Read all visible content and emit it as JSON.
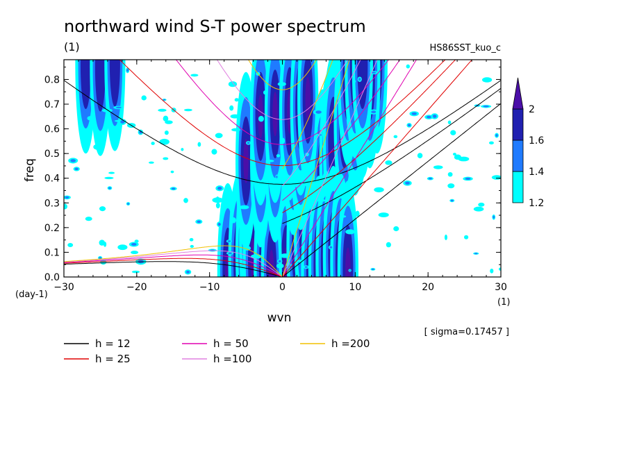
{
  "chart_data": {
    "type": "heatmap",
    "title": "northward wind S-T power spectrum",
    "subtitle_left": "(1)",
    "subtitle_right": "HS86SST_kuo_c",
    "xlabel": "wvn",
    "ylabel": "freq",
    "x_unit": "(1)",
    "y_unit": "(day-1)",
    "xlim": [
      -30,
      30
    ],
    "ylim": [
      0,
      0.88
    ],
    "x_ticks": [
      -30,
      -20,
      -10,
      0,
      10,
      20,
      30
    ],
    "x_tick_labels": [
      "-30",
      "-20",
      "-10",
      "0",
      "10",
      "20",
      "30"
    ],
    "y_ticks": [
      0,
      0.1,
      0.2,
      0.3,
      0.4,
      0.5,
      0.6,
      0.7,
      0.8
    ],
    "y_tick_labels": [
      "0.0",
      "0.1",
      "0.2",
      "0.3",
      "0.4",
      "0.5",
      "0.6",
      "0.7",
      "0.8"
    ],
    "sigma_label": "[ sigma=0.17457 ]",
    "colorbar": {
      "levels": [
        1.2,
        1.4,
        1.6,
        2
      ],
      "labels": [
        "1.2",
        "1.4",
        "1.6",
        "2"
      ],
      "colors": [
        "#00ffff",
        "#1f7bff",
        "#2020b0",
        "#4b0fa8"
      ]
    },
    "dispersion_curves": [
      {
        "label": "h = 12",
        "h": 12,
        "color": "#000000"
      },
      {
        "label": "h = 25",
        "h": 25,
        "color": "#e00000"
      },
      {
        "label": "h = 50",
        "h": 50,
        "color": "#e000b0"
      },
      {
        "label": "h =100",
        "h": 100,
        "color": "#e080e0"
      },
      {
        "label": "h =200",
        "h": 200,
        "color": "#f0c000"
      }
    ],
    "contour_features": [
      {
        "name": "kelvin-band",
        "points": [
          [
            0.5,
            0.03
          ],
          [
            2,
            0.12
          ],
          [
            3,
            0.2
          ],
          [
            4.5,
            0.3
          ],
          [
            5.5,
            0.4
          ],
          [
            6.5,
            0.48
          ],
          [
            7.5,
            0.56
          ],
          [
            9,
            0.64
          ],
          [
            10.5,
            0.72
          ],
          [
            12,
            0.8
          ],
          [
            13,
            0.86
          ]
        ],
        "level": 2
      },
      {
        "name": "mrg-band",
        "points": [
          [
            -7.5,
            0.02
          ],
          [
            -6,
            0.06
          ],
          [
            -5,
            0.1
          ],
          [
            -4.5,
            0.15
          ],
          [
            -3.5,
            0.22
          ],
          [
            -3,
            0.27
          ],
          [
            -4,
            0.07
          ],
          [
            -2.5,
            0.04
          ],
          [
            -1.5,
            0.02
          ]
        ],
        "level": 2
      },
      {
        "name": "ig-band-1",
        "points": [
          [
            -5,
            0.47
          ],
          [
            -3,
            0.48
          ],
          [
            -1,
            0.5
          ],
          [
            1.5,
            0.53
          ],
          [
            2.5,
            0.55
          ]
        ],
        "level": 2
      },
      {
        "name": "ig-band-2",
        "points": [
          [
            -3,
            0.65
          ],
          [
            -1,
            0.66
          ],
          [
            1,
            0.67
          ],
          [
            2.5,
            0.69
          ],
          [
            3.5,
            0.72
          ]
        ],
        "level": 2
      },
      {
        "name": "kelvin-2",
        "points": [
          [
            7,
            0.55
          ],
          [
            8.5,
            0.62
          ],
          [
            10,
            0.69
          ],
          [
            11,
            0.76
          ],
          [
            12,
            0.81
          ]
        ],
        "level": 1.6
      },
      {
        "name": "eastward-low",
        "points": [
          [
            4,
            0.02
          ],
          [
            5,
            0.05
          ],
          [
            6,
            0.07
          ],
          [
            7,
            0.09
          ],
          [
            8,
            0.06
          ],
          [
            9,
            0.03
          ]
        ],
        "level": 2
      },
      {
        "name": "upper-left",
        "points": [
          [
            -27,
            0.86
          ],
          [
            -25,
            0.85
          ],
          [
            -23,
            0.87
          ]
        ],
        "level": 1.6
      },
      {
        "name": "upper-right",
        "points": [
          [
            9,
            0.81
          ],
          [
            10,
            0.84
          ],
          [
            11,
            0.86
          ]
        ],
        "level": 1.6
      }
    ]
  },
  "legend": {
    "items": [
      {
        "label": "h = 12",
        "color": "#000000"
      },
      {
        "label": "h = 25",
        "color": "#e00000"
      },
      {
        "label": "h = 50",
        "color": "#e000b0"
      },
      {
        "label": "h =100",
        "color": "#e080e0"
      },
      {
        "label": "h =200",
        "color": "#f0c000"
      }
    ]
  }
}
